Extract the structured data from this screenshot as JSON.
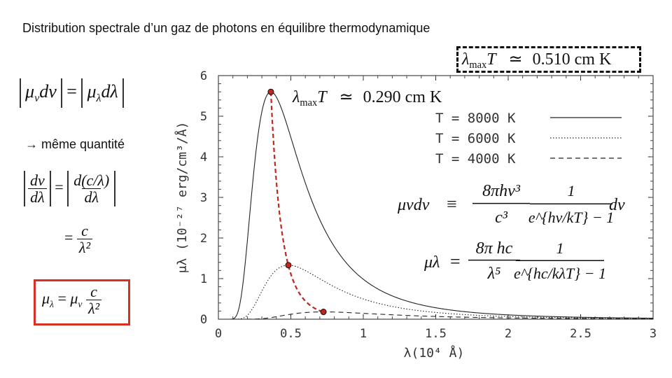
{
  "title": "Distribution spectrale d’un gaz de photons en équilibre thermodynamique",
  "side": {
    "same_quantity": "→ même quantité",
    "eq1_left": "μ",
    "eq1_left_sub": "ν",
    "eq1_left_d": "dν",
    "eq1_right": "μ",
    "eq1_right_sub": "λ",
    "eq1_right_d": "dλ",
    "eq2_num": "dν",
    "eq2_den": "dλ",
    "eq2_rnum": "d(c/λ)",
    "eq2_rden": "dλ",
    "eq3_num": "c",
    "eq3_den": "λ²",
    "boxed_num": "c",
    "boxed_den": "λ²"
  },
  "annotations": {
    "lambda_max_T_top": "0.510 cm K",
    "lambda_max_T_mid": "0.290 cm K"
  },
  "formulas": {
    "mu_nu_rhs_num": "8πhν³",
    "mu_nu_rhs_den": "c³",
    "mu_nu_frac_den": "e^{hν/kT} − 1",
    "mu_lambda_num": "8π hc",
    "mu_lambda_den": "λ⁵",
    "mu_lambda_frac_den": "e^{hc/kλT} − 1"
  },
  "chart_data": {
    "type": "line",
    "title": "",
    "xlabel": "λ(10⁴ Å)",
    "ylabel": "μλ (10⁻²⁷ erg/cm³/Å)",
    "xlim": [
      0,
      3
    ],
    "ylim": [
      0,
      6
    ],
    "xticks": [
      "0",
      "0.5",
      "1",
      "1.5",
      "2",
      "2.5",
      "3"
    ],
    "yticks": [
      "0",
      "1",
      "2",
      "3",
      "4",
      "5",
      "6"
    ],
    "legend_position": "top-right",
    "series": [
      {
        "name": "T = 8000 K",
        "temperature": 8000,
        "style": "solid",
        "peak_lambda": 0.362,
        "peak_value": 5.6
      },
      {
        "name": "T = 6000 K",
        "temperature": 6000,
        "style": "dotted",
        "peak_lambda": 0.483,
        "peak_value": 1.33
      },
      {
        "name": "T = 4000 K",
        "temperature": 4000,
        "style": "dashed",
        "peak_lambda": 0.725,
        "peak_value": 0.18
      }
    ],
    "peak_locus_color": "#c0261d"
  }
}
